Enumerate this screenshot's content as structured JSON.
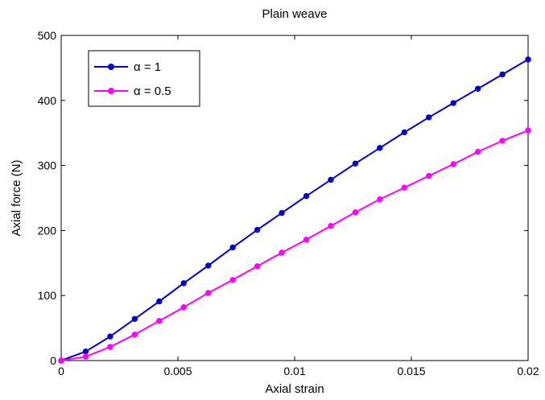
{
  "chart_data": {
    "type": "line",
    "title": "Plain weave",
    "xlabel": "Axial strain",
    "ylabel": "Axial force (N)",
    "xlim": [
      0,
      0.02
    ],
    "ylim": [
      0,
      500
    ],
    "xticks": [
      0,
      0.005,
      0.01,
      0.015,
      0.02
    ],
    "xtick_labels": [
      "0",
      "0.005",
      "0.01",
      "0.015",
      "0.02"
    ],
    "yticks": [
      0,
      100,
      200,
      300,
      400,
      500
    ],
    "ytick_labels": [
      "0",
      "100",
      "200",
      "300",
      "400",
      "500"
    ],
    "grid": false,
    "legend_position": "top-left",
    "x": [
      0,
      0.00105,
      0.0021,
      0.00315,
      0.0042,
      0.00525,
      0.0063,
      0.00735,
      0.0084,
      0.00945,
      0.0105,
      0.01155,
      0.0126,
      0.01365,
      0.0147,
      0.01575,
      0.0168,
      0.01785,
      0.0189,
      0.02
    ],
    "series": [
      {
        "name": "α = 1",
        "color": "#0000cc",
        "values": [
          0,
          14,
          37,
          64,
          91,
          119,
          146,
          174,
          201,
          227,
          253,
          278,
          303,
          327,
          351,
          374,
          396,
          418,
          440,
          463
        ]
      },
      {
        "name": "α = 0.5",
        "color": "#ff00ff",
        "values": [
          0,
          6,
          21,
          40,
          61,
          82,
          104,
          124,
          145,
          166,
          186,
          207,
          228,
          248,
          266,
          284,
          302,
          321,
          338,
          354
        ]
      }
    ]
  }
}
